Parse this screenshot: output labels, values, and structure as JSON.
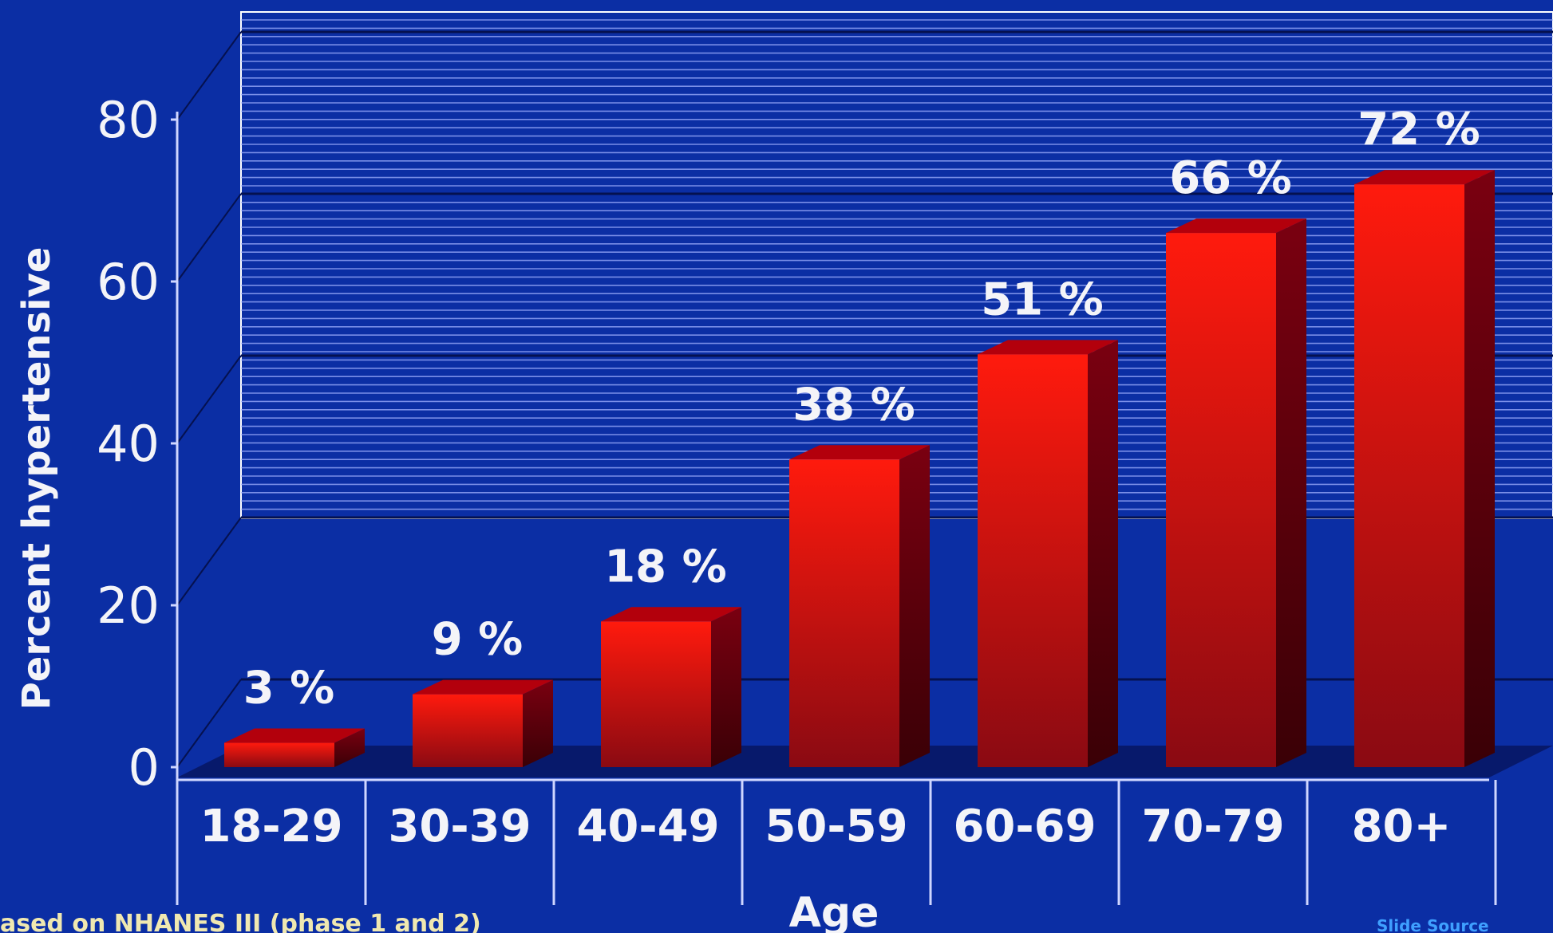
{
  "chart_data": {
    "type": "bar",
    "title": "",
    "xlabel": "Age",
    "ylabel": "Percent hypertensive",
    "categories": [
      "18-29",
      "30-39",
      "40-49",
      "50-59",
      "60-69",
      "70-79",
      "80+"
    ],
    "values": [
      3,
      9,
      18,
      38,
      51,
      66,
      72
    ],
    "value_labels": [
      "3 %",
      "9 %",
      "18 %",
      "38 %",
      "51 %",
      "66 %",
      "72 %"
    ],
    "yticks": [
      "0",
      "20",
      "40",
      "60",
      "80"
    ],
    "ylim": [
      0,
      80
    ],
    "grid": true,
    "legend": "none"
  },
  "footnote": "ased on NHANES III (phase 1 and 2)",
  "source_label": "Slide Source",
  "colors": {
    "background": "#0b2ea4",
    "bar_front_light": "#ff1a0d",
    "bar_front_dark": "#8a0a12",
    "bar_side": "#5c0008",
    "bar_top": "#b3000c",
    "grid_line": "#ffffff",
    "text": "#f4f4f8",
    "footnote_text": "#f0e8b0",
    "source_text": "#3fa0ff"
  }
}
